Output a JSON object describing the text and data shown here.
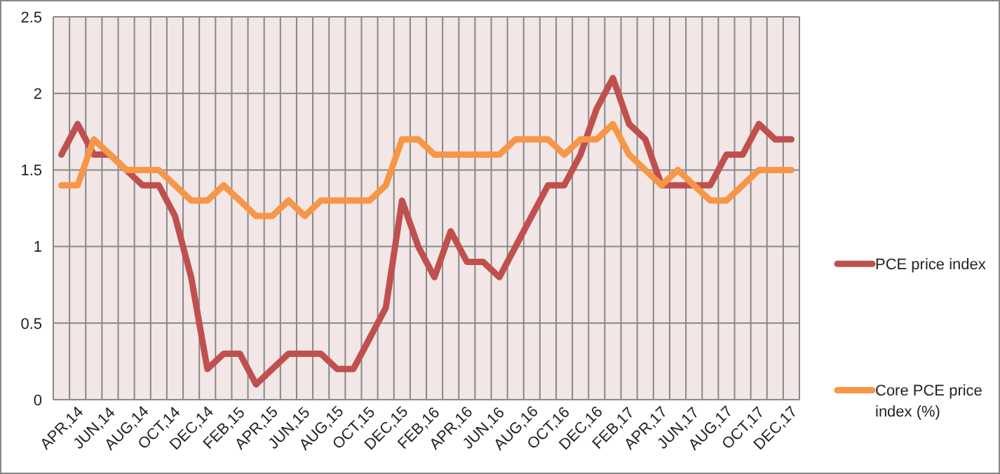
{
  "chart_data": {
    "type": "line",
    "categories": [
      "APR,14",
      null,
      "JUN,14",
      null,
      "AUG,14",
      null,
      "OCT,14",
      null,
      "DEC,14",
      null,
      "FEB,15",
      null,
      "APR,15",
      null,
      "JUN,15",
      null,
      "AUG,15",
      null,
      "OCT,15",
      null,
      "DEC,15",
      null,
      "FEB,16",
      null,
      "APR,16",
      null,
      "JUN,16",
      null,
      "AUG,16",
      null,
      "OCT,16",
      null,
      "DEC,16",
      null,
      "FEB,17",
      null,
      "APR,17",
      null,
      "JUN,17",
      null,
      "AUG,17",
      null,
      "OCT,17",
      null,
      "DEC,17",
      null
    ],
    "series": [
      {
        "name": "PCE price index",
        "color": "#c0504d",
        "values": [
          1.6,
          1.8,
          1.6,
          1.6,
          1.5,
          1.4,
          1.4,
          1.2,
          0.8,
          0.2,
          0.3,
          0.3,
          0.1,
          0.2,
          0.3,
          0.3,
          0.3,
          0.2,
          0.2,
          0.4,
          0.6,
          1.3,
          1.0,
          0.8,
          1.1,
          0.9,
          0.9,
          0.8,
          1.0,
          1.2,
          1.4,
          1.4,
          1.6,
          1.9,
          2.1,
          1.8,
          1.7,
          1.4,
          1.4,
          1.4,
          1.4,
          1.6,
          1.6,
          1.8,
          1.7,
          1.7
        ]
      },
      {
        "name": "Core PCE price index (%)",
        "color": "#f79646",
        "values": [
          1.4,
          1.4,
          1.7,
          1.6,
          1.5,
          1.5,
          1.5,
          1.4,
          1.3,
          1.3,
          1.4,
          1.3,
          1.2,
          1.2,
          1.3,
          1.2,
          1.3,
          1.3,
          1.3,
          1.3,
          1.4,
          1.7,
          1.7,
          1.6,
          1.6,
          1.6,
          1.6,
          1.6,
          1.7,
          1.7,
          1.7,
          1.6,
          1.7,
          1.7,
          1.8,
          1.6,
          1.5,
          1.4,
          1.5,
          1.4,
          1.3,
          1.3,
          1.4,
          1.5,
          1.5,
          1.5
        ]
      }
    ],
    "ylim": [
      0,
      2.5
    ],
    "yticks": [
      0,
      0.5,
      1,
      1.5,
      2,
      2.5
    ],
    "grid": true,
    "legend": "right",
    "marker": "none",
    "line_style": "solid"
  }
}
